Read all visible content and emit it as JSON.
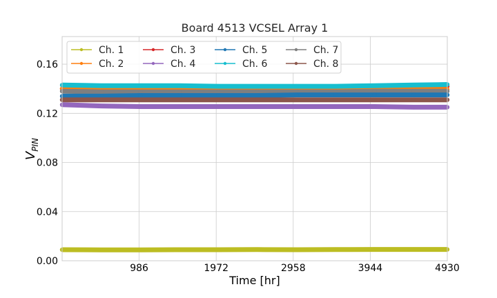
{
  "chart_data": {
    "type": "scatter",
    "title": "Board 4513 VCSEL Array 1",
    "xlabel": "Time [hr]",
    "ylabel_main": "V",
    "ylabel_sub": "PIN",
    "xlim": [
      0,
      4930
    ],
    "ylim": [
      0,
      0.1825
    ],
    "xticks": [
      986,
      1972,
      2958,
      3944,
      4930
    ],
    "xtick_labels": [
      "986",
      "1972",
      "2958",
      "3944",
      "4930"
    ],
    "yticks": [
      0.0,
      0.04,
      0.08,
      0.12,
      0.16
    ],
    "ytick_labels": [
      "0.00",
      "0.04",
      "0.08",
      "0.12",
      "0.16"
    ],
    "grid": true,
    "legend_position": "top-left",
    "legend_columns": 4,
    "series": [
      {
        "name": "Ch. 1",
        "color": "#bcbd22",
        "x": [
          0,
          500,
          1000,
          1500,
          2000,
          2500,
          3000,
          3500,
          4000,
          4500,
          4930
        ],
        "y": [
          0.009,
          0.0089,
          0.0089,
          0.009,
          0.009,
          0.0091,
          0.009,
          0.0091,
          0.0092,
          0.0092,
          0.0092
        ]
      },
      {
        "name": "Ch. 2",
        "color": "#ff7f0e",
        "x": [
          0,
          500,
          1000,
          1500,
          2000,
          2500,
          3000,
          3500,
          4000,
          4500,
          4930
        ],
        "y": [
          0.14,
          0.1395,
          0.1395,
          0.139,
          0.139,
          0.1385,
          0.1385,
          0.139,
          0.139,
          0.1395,
          0.1395
        ]
      },
      {
        "name": "Ch. 3",
        "color": "#d62728",
        "x": [
          0,
          500,
          1000,
          1500,
          2000,
          2500,
          3000,
          3500,
          4000,
          4500,
          4930
        ],
        "y": [
          0.14,
          0.141,
          0.142,
          0.142,
          0.1415,
          0.141,
          0.141,
          0.1415,
          0.142,
          0.142,
          0.142
        ]
      },
      {
        "name": "Ch. 4",
        "color": "#9467bd",
        "x": [
          0,
          500,
          1000,
          1500,
          2000,
          2500,
          3000,
          3500,
          4000,
          4500,
          4930
        ],
        "y": [
          0.127,
          0.126,
          0.1255,
          0.1255,
          0.1255,
          0.1255,
          0.1255,
          0.1255,
          0.1255,
          0.125,
          0.125
        ]
      },
      {
        "name": "Ch. 5",
        "color": "#1f77b4",
        "x": [
          0,
          500,
          1000,
          1500,
          2000,
          2500,
          3000,
          3500,
          4000,
          4500,
          4930
        ],
        "y": [
          0.134,
          0.134,
          0.1345,
          0.1345,
          0.1345,
          0.1345,
          0.135,
          0.135,
          0.135,
          0.135,
          0.135
        ]
      },
      {
        "name": "Ch. 6",
        "color": "#17becf",
        "x": [
          0,
          500,
          1000,
          1500,
          2000,
          2500,
          3000,
          3500,
          4000,
          4500,
          4930
        ],
        "y": [
          0.143,
          0.1425,
          0.1425,
          0.1425,
          0.142,
          0.142,
          0.142,
          0.142,
          0.1425,
          0.143,
          0.1435
        ]
      },
      {
        "name": "Ch. 7",
        "color": "#7f7f7f",
        "x": [
          0,
          500,
          1000,
          1500,
          2000,
          2500,
          3000,
          3500,
          4000,
          4500,
          4930
        ],
        "y": [
          0.138,
          0.1375,
          0.1375,
          0.1375,
          0.1375,
          0.1375,
          0.1375,
          0.1375,
          0.138,
          0.138,
          0.138
        ]
      },
      {
        "name": "Ch. 8",
        "color": "#8c564b",
        "x": [
          0,
          500,
          1000,
          1500,
          2000,
          2500,
          3000,
          3500,
          4000,
          4500,
          4930
        ],
        "y": [
          0.131,
          0.131,
          0.131,
          0.131,
          0.131,
          0.131,
          0.131,
          0.131,
          0.131,
          0.131,
          0.131
        ]
      }
    ]
  }
}
